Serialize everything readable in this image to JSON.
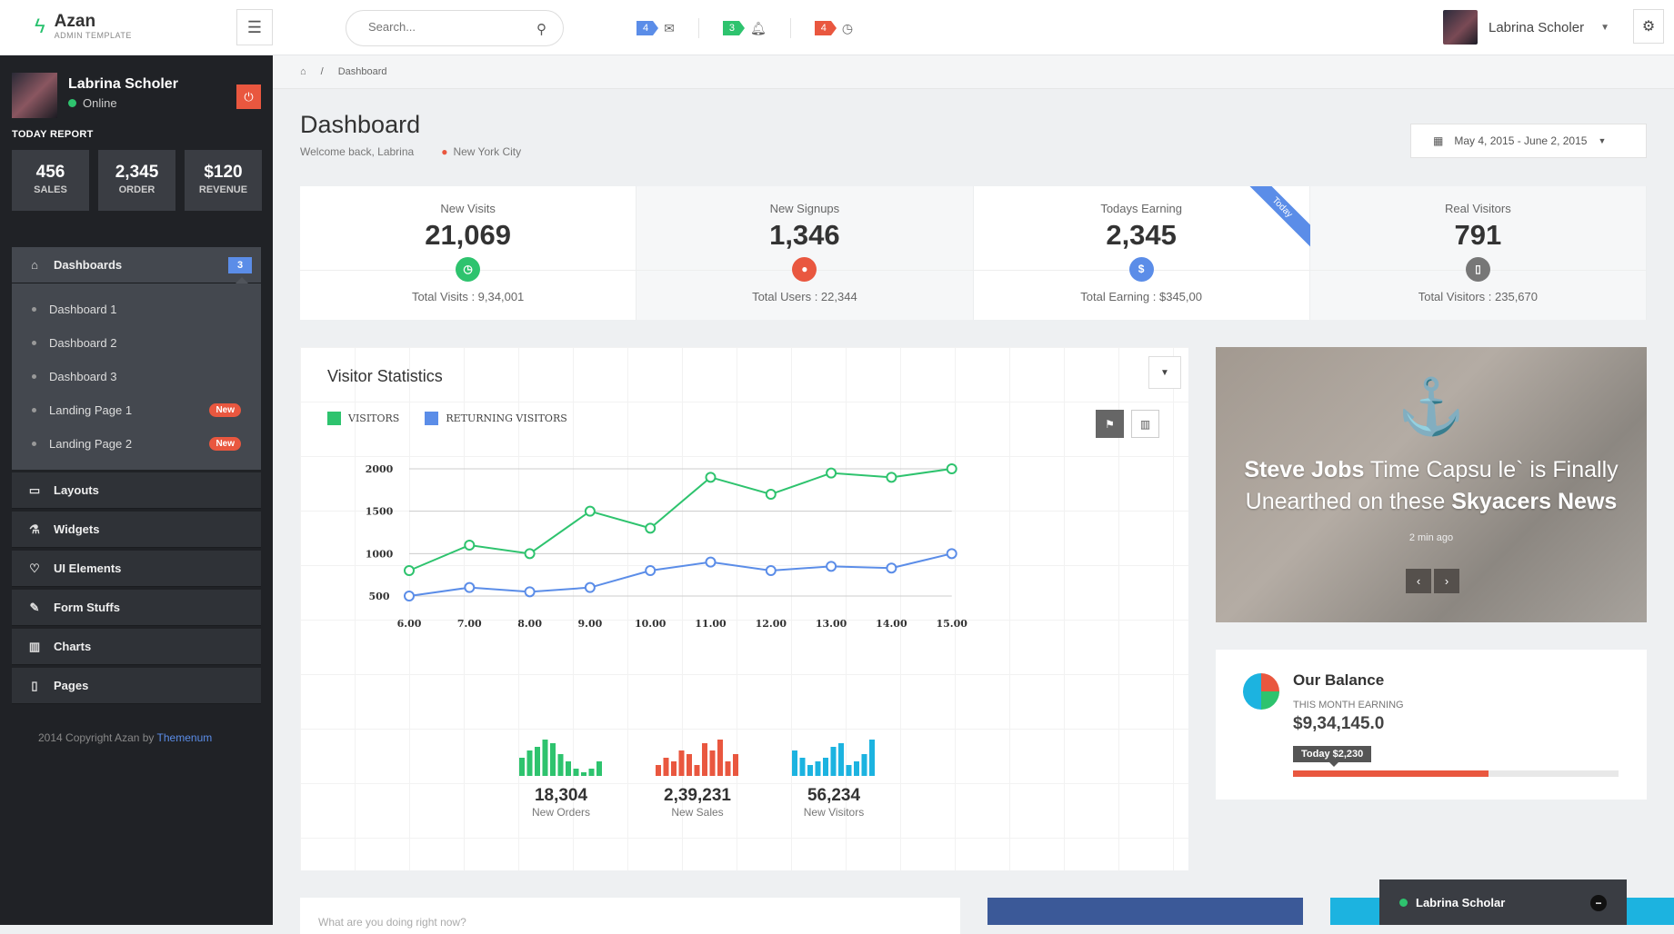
{
  "brand": {
    "name": "Azan",
    "sub": "ADMIN TEMPLATE"
  },
  "search": {
    "placeholder": "Search..."
  },
  "notifications": [
    {
      "count": "4",
      "color": "#5b8de8",
      "icon": "mail-icon"
    },
    {
      "count": "3",
      "color": "#2ec36e",
      "icon": "bell-icon"
    },
    {
      "count": "4",
      "color": "#e9573f",
      "icon": "clock-icon"
    }
  ],
  "user": {
    "name": "Labrina Scholer",
    "status": "Online"
  },
  "today_report": {
    "title": "TODAY REPORT",
    "items": [
      {
        "value": "456",
        "label": "SALES"
      },
      {
        "value": "2,345",
        "label": "ORDER"
      },
      {
        "value": "$120",
        "label": "REVENUE"
      }
    ]
  },
  "menu": {
    "dashboards": {
      "label": "Dashboards",
      "badge": "3"
    },
    "sub": [
      {
        "label": "Dashboard 1",
        "badge": ""
      },
      {
        "label": "Dashboard 2",
        "badge": ""
      },
      {
        "label": "Dashboard 3",
        "badge": ""
      },
      {
        "label": "Landing Page 1",
        "badge": "New"
      },
      {
        "label": "Landing Page 2",
        "badge": "New"
      }
    ],
    "items": [
      {
        "label": "Layouts",
        "icon": "monitor-icon"
      },
      {
        "label": "Widgets",
        "icon": "flask-icon"
      },
      {
        "label": "UI Elements",
        "icon": "heart-icon"
      },
      {
        "label": "Form Stuffs",
        "icon": "pencil-icon"
      },
      {
        "label": "Charts",
        "icon": "bar-chart-icon"
      },
      {
        "label": "Pages",
        "icon": "file-icon"
      }
    ]
  },
  "copyright": {
    "text": "2014 Copyright Azan by ",
    "link": "Themenum"
  },
  "breadcrumb": {
    "current": "Dashboard"
  },
  "page": {
    "title": "Dashboard",
    "welcome": "Welcome back, Labrina",
    "location": "New York City",
    "daterange": "May 4, 2015 - June 2, 2015"
  },
  "cards": [
    {
      "title": "New Visits",
      "value": "21,069",
      "footer": "Total Visits : 9,34,001",
      "color": "#2ec36e",
      "icon": "clock-icon"
    },
    {
      "title": "New Signups",
      "value": "1,346",
      "footer": "Total Users : 22,344",
      "color": "#e9573f",
      "icon": "user-icon"
    },
    {
      "title": "Todays Earning",
      "value": "2,345",
      "footer": "Total Earning : $345,00",
      "color": "#5b8de8",
      "icon": "dollar-icon",
      "ribbon": "Today"
    },
    {
      "title": "Real Visitors",
      "value": "791",
      "footer": "Total Visitors : 235,670",
      "color": "#777777",
      "icon": "mobile-icon"
    }
  ],
  "visitor": {
    "title_bold": "Visitor",
    "title_rest": " Statistics",
    "legend": [
      {
        "name": "VISITORS",
        "color": "#2ec36e"
      },
      {
        "name": "RETURNING VISITORS",
        "color": "#5b8de8"
      }
    ]
  },
  "chart_data": {
    "type": "line",
    "x": [
      "6.00",
      "7.00",
      "8.00",
      "9.00",
      "10.00",
      "11.00",
      "12.00",
      "13.00",
      "14.00",
      "15.00"
    ],
    "series": [
      {
        "name": "VISITORS",
        "color": "#2ec36e",
        "values": [
          800,
          1100,
          1000,
          1500,
          1300,
          1900,
          1700,
          1950,
          1900,
          2000
        ]
      },
      {
        "name": "RETURNING VISITORS",
        "color": "#5b8de8",
        "values": [
          500,
          600,
          550,
          600,
          800,
          900,
          800,
          850,
          830,
          1000
        ]
      }
    ],
    "yticks": [
      500,
      1000,
      1500,
      2000
    ],
    "ylim": [
      500,
      2000
    ],
    "grid": true
  },
  "minis": [
    {
      "value": "18,304",
      "label": "New Orders",
      "color": "#2ec36e",
      "bars": [
        5,
        7,
        8,
        10,
        9,
        6,
        4,
        2,
        1,
        2,
        4
      ]
    },
    {
      "value": "2,39,231",
      "label": "New Sales",
      "color": "#e9573f",
      "bars": [
        3,
        5,
        4,
        7,
        6,
        3,
        9,
        7,
        10,
        4,
        6
      ]
    },
    {
      "value": "56,234",
      "label": "New Visitors",
      "color": "#1cb3e0",
      "bars": [
        7,
        5,
        3,
        4,
        5,
        8,
        9,
        3,
        4,
        6,
        10
      ]
    }
  ],
  "news": {
    "bold1": "Steve Jobs",
    "text1": " Time Capsu le` is Finally",
    "text2": "Unearthed on these ",
    "bold2": "Skyacers News",
    "ago": "2 min ago"
  },
  "balance": {
    "title": "Our Balance",
    "label": "THIS MONTH EARNING",
    "value": "$9,34,145.0",
    "tip": "Today  $2,230",
    "progress": 0.6
  },
  "status_input": {
    "placeholder": "What are you doing right now?"
  },
  "chat": {
    "name": "Labrina Scholar"
  }
}
